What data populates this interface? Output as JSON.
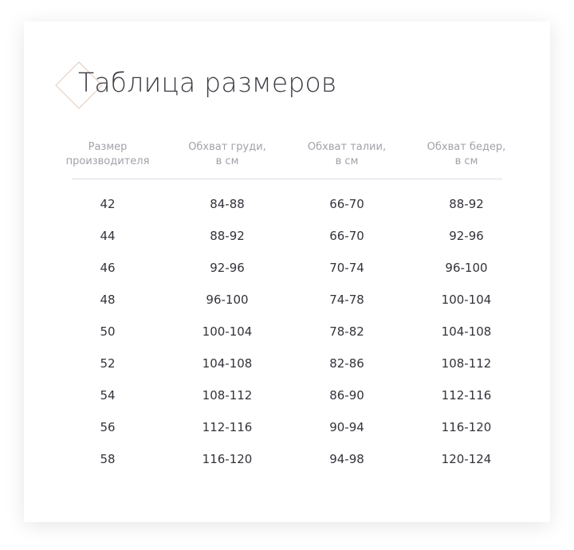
{
  "title": "Таблица размеров",
  "headers": [
    [
      "Размер",
      "производителя"
    ],
    [
      "Обхват груди,",
      "в см"
    ],
    [
      "Обхват талии,",
      "в см"
    ],
    [
      "Обхват бедер,",
      "в см"
    ]
  ],
  "rows": [
    [
      "42",
      "84-88",
      "66-70",
      "88-92"
    ],
    [
      "44",
      "88-92",
      "66-70",
      "92-96"
    ],
    [
      "46",
      "92-96",
      "70-74",
      "96-100"
    ],
    [
      "48",
      "96-100",
      "74-78",
      "100-104"
    ],
    [
      "50",
      "100-104",
      "78-82",
      "104-108"
    ],
    [
      "52",
      "104-108",
      "82-86",
      "108-112"
    ],
    [
      "54",
      "108-112",
      "86-90",
      "112-116"
    ],
    [
      "56",
      "112-116",
      "90-94",
      "116-120"
    ],
    [
      "58",
      "116-120",
      "94-98",
      "120-124"
    ]
  ],
  "colors": {
    "accent_diamond": "#e3cbbb",
    "text": "#33333b",
    "header_text": "#a1a1aa"
  }
}
